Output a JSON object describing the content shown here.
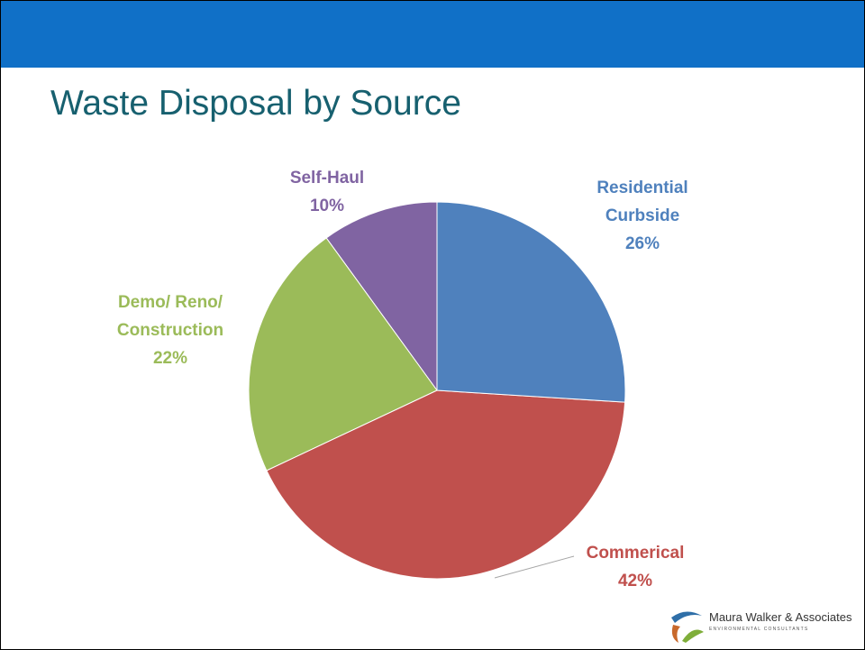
{
  "chart_data": {
    "type": "pie",
    "title": "Waste Disposal by Source",
    "categories": [
      "Residential Curbside",
      "Commerical",
      "Demo/ Reno/ Construction",
      "Self-Haul"
    ],
    "values": [
      26,
      42,
      22,
      10
    ],
    "value_labels": [
      "26%",
      "42%",
      "22%",
      "10%"
    ],
    "colors": [
      "#4f81bd",
      "#c0504d",
      "#9bbb59",
      "#8064a2"
    ]
  },
  "logo": {
    "name": "Maura Walker & Associates",
    "tagline": "ENVIRONMENTAL CONSULTANTS"
  }
}
